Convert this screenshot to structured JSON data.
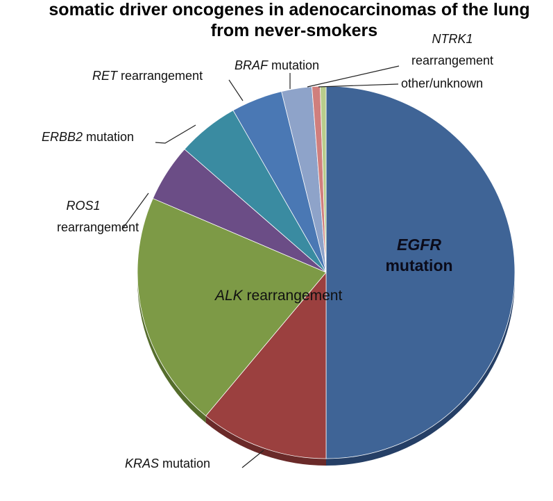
{
  "chart_data": {
    "type": "pie",
    "title_lines": [
      "somatic driver oncogenes in adenocarcinomas of the lung",
      "from never-smokers"
    ],
    "slices": [
      {
        "gene": "EGFR",
        "suffix": "mutation",
        "value": 50.0,
        "color": "#3f6496",
        "side": "#253f66"
      },
      {
        "gene": "KRAS",
        "suffix": "mutation",
        "value": 11.0,
        "color": "#9b403f",
        "side": "#6a2a29"
      },
      {
        "gene": "ALK",
        "suffix": "rearrangement",
        "value": 20.5,
        "color": "#7d9a46",
        "side": "#556d2c"
      },
      {
        "gene": "ROS1",
        "suffix": "rearrangement",
        "value": 5.0,
        "color": "#6b4d86",
        "side": "#4a345e"
      },
      {
        "gene": "ERBB2",
        "suffix": "mutation",
        "value": 5.3,
        "color": "#3a8ba1",
        "side": "#26606f"
      },
      {
        "gene": "RET",
        "suffix": "rearrangement",
        "value": 4.4,
        "color": "#4a78b4",
        "side": "#30537f"
      },
      {
        "gene": "BRAF",
        "suffix": "mutation",
        "value": 2.6,
        "color": "#8ea3c9",
        "side": "#63779a"
      },
      {
        "gene": "NTRK1",
        "suffix": "rearrangement",
        "value": 0.7,
        "color": "#d07f7d",
        "side": "#9d5654"
      },
      {
        "gene": "",
        "suffix": "other/unknown",
        "value": 0.5,
        "color": "#b8cc8b",
        "side": "#87985f"
      }
    ]
  }
}
